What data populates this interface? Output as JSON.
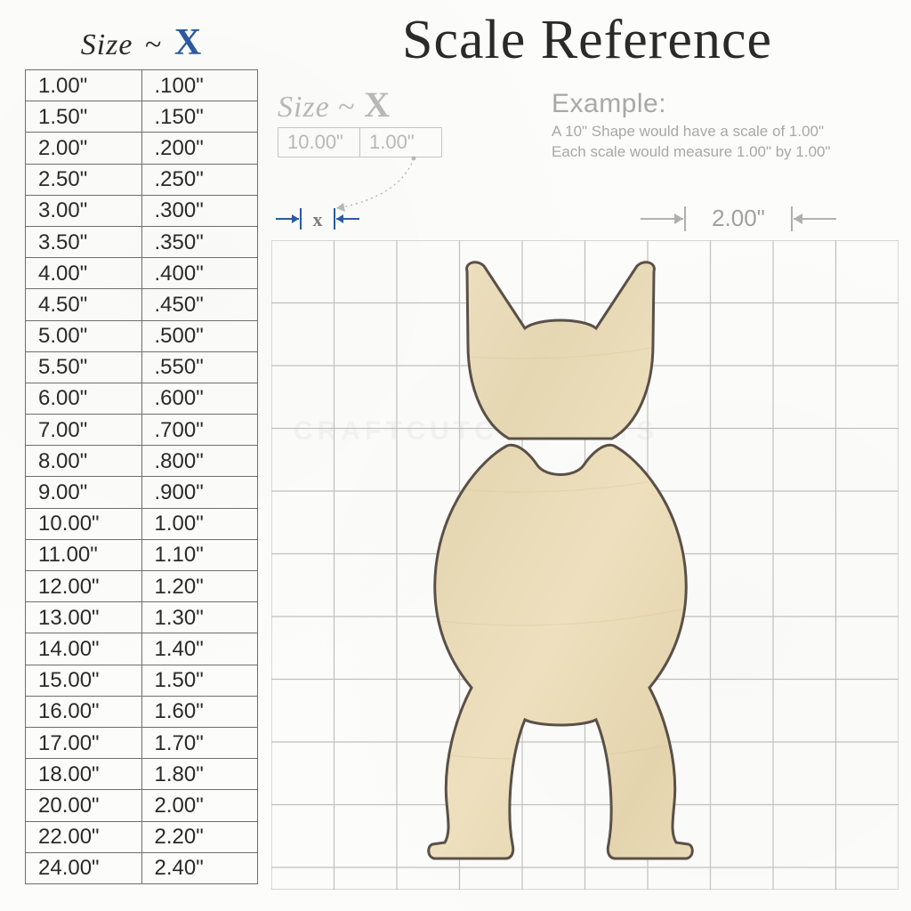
{
  "main_title": "Scale Reference",
  "size_table": {
    "header_size": "Size",
    "header_dash": "~",
    "header_x": "X",
    "header_color": "#2a2a2a",
    "x_color": "#2b5a9e",
    "border_color": "#6e6e6e",
    "cell_fontsize": 24,
    "rows": [
      [
        "1.00\"",
        ".100\""
      ],
      [
        "1.50\"",
        ".150\""
      ],
      [
        "2.00\"",
        ".200\""
      ],
      [
        "2.50\"",
        ".250\""
      ],
      [
        "3.00\"",
        ".300\""
      ],
      [
        "3.50\"",
        ".350\""
      ],
      [
        "4.00\"",
        ".400\""
      ],
      [
        "4.50\"",
        ".450\""
      ],
      [
        "5.00\"",
        ".500\""
      ],
      [
        "5.50\"",
        ".550\""
      ],
      [
        "6.00\"",
        ".600\""
      ],
      [
        "7.00\"",
        ".700\""
      ],
      [
        "8.00\"",
        ".800\""
      ],
      [
        "9.00\"",
        ".900\""
      ],
      [
        "10.00\"",
        "1.00\""
      ],
      [
        "11.00\"",
        "1.10\""
      ],
      [
        "12.00\"",
        "1.20\""
      ],
      [
        "13.00\"",
        "1.30\""
      ],
      [
        "14.00\"",
        "1.40\""
      ],
      [
        "15.00\"",
        "1.50\""
      ],
      [
        "16.00\"",
        "1.60\""
      ],
      [
        "17.00\"",
        "1.70\""
      ],
      [
        "18.00\"",
        "1.80\""
      ],
      [
        "20.00\"",
        "2.00\""
      ],
      [
        "22.00\"",
        "2.20\""
      ],
      [
        "24.00\"",
        "2.40\""
      ]
    ]
  },
  "mini_block": {
    "header_size": "Size",
    "header_dash": "~",
    "header_x": "X",
    "color": "#b8b8b8",
    "cells": [
      "10.00\"",
      "1.00\""
    ]
  },
  "example": {
    "title": "Example:",
    "line1": "A 10\" Shape would have a scale of 1.00\"",
    "line2": "Each scale would measure 1.00\" by 1.00\"",
    "color": "#a8a8a8"
  },
  "x_indicator": {
    "label": "x",
    "arrow_color": "#2b5a9e",
    "label_color": "#8a8a8a"
  },
  "dimension": {
    "label": "2.00\"",
    "arrow_color": "#b0b0b0",
    "label_color": "#a0a0a0"
  },
  "grid": {
    "cols": 10,
    "rows": 10,
    "cell_size": 70.5,
    "line_color": "#c0c0c0",
    "bg_color": "transparent"
  },
  "shape": {
    "fill_base": "#e8d9b8",
    "fill_light": "#f2e7cc",
    "stroke": "#5a5048"
  },
  "watermark": "CRAFTCUTCONCEPTS",
  "background_color": "#fcfcfa"
}
